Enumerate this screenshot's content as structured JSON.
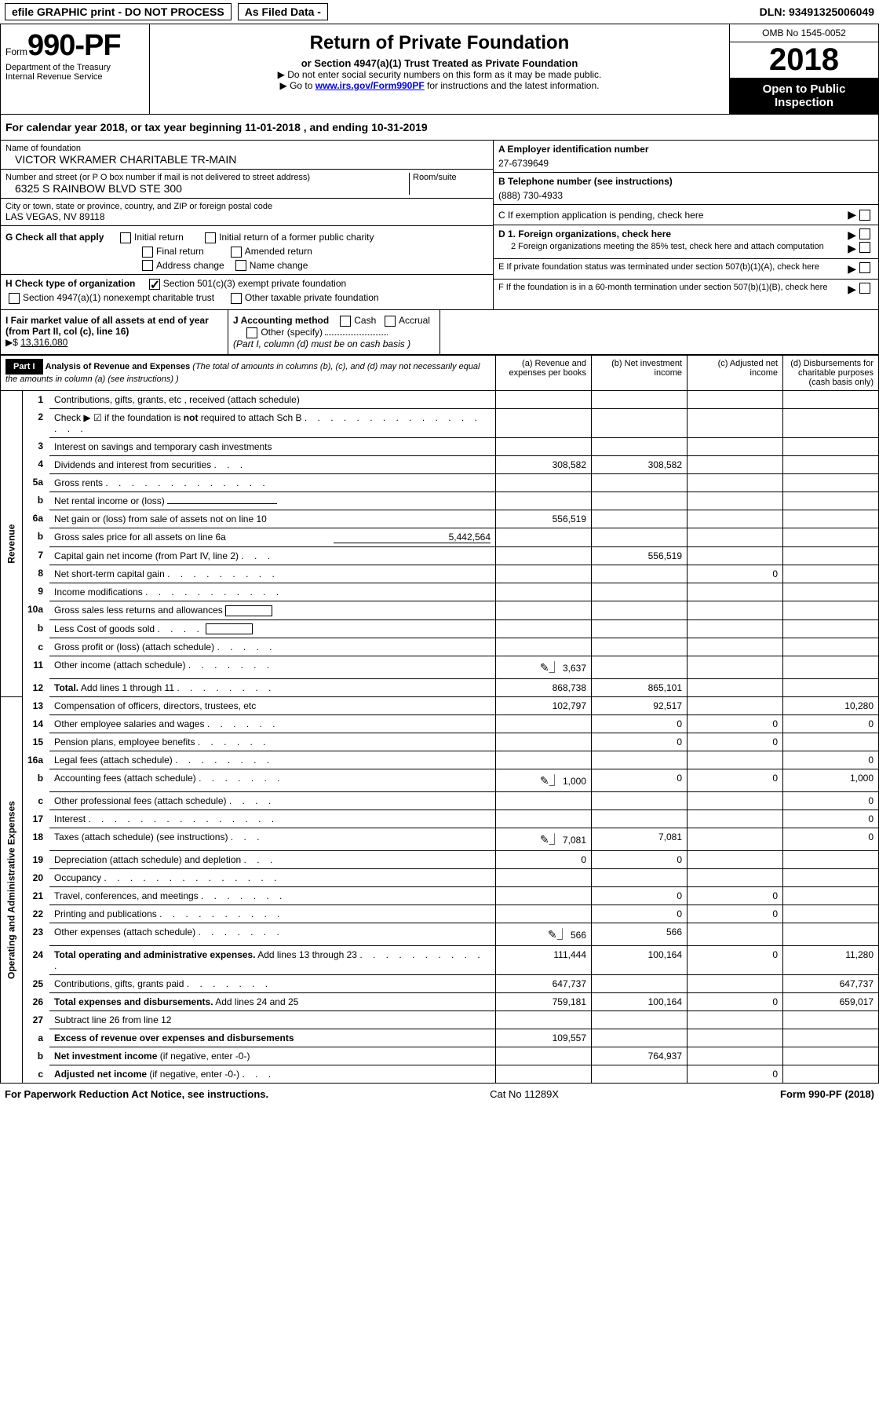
{
  "top": {
    "efile": "efile GRAPHIC print - DO NOT PROCESS",
    "asfiled": "As Filed Data -",
    "dln": "DLN: 93491325006049"
  },
  "header": {
    "form_label": "Form",
    "form_no": "990-PF",
    "dept1": "Department of the Treasury",
    "dept2": "Internal Revenue Service",
    "title": "Return of Private Foundation",
    "subtitle": "or Section 4947(a)(1) Trust Treated as Private Foundation",
    "instr1": "▶ Do not enter social security numbers on this form as it may be made public.",
    "instr2_a": "▶ Go to ",
    "instr2_link": "www.irs.gov/Form990PF",
    "instr2_b": " for instructions and the latest information.",
    "omb": "OMB No 1545-0052",
    "year": "2018",
    "open": "Open to Public Inspection"
  },
  "calyear": "For calendar year 2018, or tax year beginning 11-01-2018               , and ending 10-31-2019",
  "info_left": {
    "name_label": "Name of foundation",
    "name": "VICTOR WKRAMER CHARITABLE TR-MAIN",
    "street_label": "Number and street (or P O  box number if mail is not delivered to street address)",
    "room_label": "Room/suite",
    "street": "6325 S RAINBOW BLVD STE 300",
    "city_label": "City or town, state or province, country, and ZIP or foreign postal code",
    "city": "LAS VEGAS, NV  89118"
  },
  "info_right": {
    "a_label": "A Employer identification number",
    "a_val": "27-6739649",
    "b_label": "B Telephone number (see instructions)",
    "b_val": "(888) 730-4933",
    "c_label": "C If exemption application is pending, check here",
    "d1": "D 1. Foreign organizations, check here",
    "d2": "2  Foreign organizations meeting the 85% test, check here and attach computation",
    "e": "E  If private foundation status was terminated under section 507(b)(1)(A), check here",
    "f": "F  If the foundation is in a 60-month termination under section 507(b)(1)(B), check here"
  },
  "g": {
    "label": "G Check all that apply",
    "opts": [
      "Initial return",
      "Initial return of a former public charity",
      "Final return",
      "Amended return",
      "Address change",
      "Name change"
    ]
  },
  "h": {
    "label": "H Check type of organization",
    "opt1": "Section 501(c)(3) exempt private foundation",
    "opt2": "Section 4947(a)(1) nonexempt charitable trust",
    "opt3": "Other taxable private foundation"
  },
  "i": {
    "label": "I Fair market value of all assets at end of year (from Part II, col  (c), line 16)",
    "arrow": "▶$",
    "val": "13,316,080"
  },
  "j": {
    "label": "J Accounting method",
    "cash": "Cash",
    "accrual": "Accrual",
    "other": "Other (specify)",
    "note": "(Part I, column (d) must be on cash basis )"
  },
  "part1": {
    "tag": "Part I",
    "title": "Analysis of Revenue and Expenses",
    "title_note": "(The total of amounts in columns (b), (c), and (d) may not necessarily equal the amounts in column (a) (see instructions) )",
    "col_a": "(a)   Revenue and expenses per books",
    "col_b": "(b)   Net investment income",
    "col_c": "(c)  Adjusted net income",
    "col_d": "(d)  Disbursements for charitable purposes (cash basis only)"
  },
  "revenue_label": "Revenue",
  "expense_label": "Operating and Administrative Expenses",
  "rows": [
    {
      "n": "1",
      "d": "Contributions, gifts, grants, etc , received (attach schedule)"
    },
    {
      "n": "2",
      "d": "Check ▶ ☑ if the foundation is <b>not</b> required to attach Sch  B",
      "dots": ". . . . . . . . . . . . . . . . ."
    },
    {
      "n": "3",
      "d": "Interest on savings and temporary cash investments"
    },
    {
      "n": "4",
      "d": "Dividends and interest from securities",
      "dots": ".  .  .",
      "a": "308,582",
      "b": "308,582"
    },
    {
      "n": "5a",
      "d": "Gross rents",
      "dots": ". . . . . . . . . . . . ."
    },
    {
      "n": "b",
      "d": "Net rental income or (loss)",
      "ul": true
    },
    {
      "n": "6a",
      "d": "Net gain or (loss) from sale of assets not on line 10",
      "a": "556,519"
    },
    {
      "n": "b",
      "d": "Gross sales price for all assets on line 6a",
      "extra": "5,442,564"
    },
    {
      "n": "7",
      "d": "Capital gain net income (from Part IV, line 2)",
      "dots": ".  .  .",
      "b": "556,519"
    },
    {
      "n": "8",
      "d": "Net short-term capital gain",
      "dots": ". . . . . . . . .",
      "c": "0"
    },
    {
      "n": "9",
      "d": "Income modifications",
      "dots": ". . . . . . . . . . ."
    },
    {
      "n": "10a",
      "d": "Gross sales less returns and allowances",
      "box": true
    },
    {
      "n": "b",
      "d": "Less  Cost of goods sold",
      "dots": ".  .  .  .",
      "box": true
    },
    {
      "n": "c",
      "d": "Gross profit or (loss) (attach schedule)",
      "dots": ".  .  .  .  ."
    },
    {
      "n": "11",
      "d": "Other income (attach schedule)",
      "dots": ". . . . . . .",
      "icon": true,
      "a": "3,637"
    },
    {
      "n": "12",
      "d": "<b>Total.</b> Add lines 1 through 11",
      "dots": ". . . . . . . .",
      "a": "868,738",
      "b": "865,101"
    }
  ],
  "exp_rows": [
    {
      "n": "13",
      "d": "Compensation of officers, directors, trustees, etc",
      "a": "102,797",
      "b": "92,517",
      "d4": "10,280"
    },
    {
      "n": "14",
      "d": "Other employee salaries and wages",
      "dots": ". . . . . .",
      "b": "0",
      "c": "0",
      "d4": "0"
    },
    {
      "n": "15",
      "d": "Pension plans, employee benefits",
      "dots": ". . . . . .",
      "b": "0",
      "c": "0"
    },
    {
      "n": "16a",
      "d": "Legal fees (attach schedule)",
      "dots": ". . . . . . . .",
      "d4": "0"
    },
    {
      "n": "b",
      "d": "Accounting fees (attach schedule)",
      "dots": ". . . . . . .",
      "icon": true,
      "a": "1,000",
      "b": "0",
      "c": "0",
      "d4": "1,000"
    },
    {
      "n": "c",
      "d": "Other professional fees (attach schedule)",
      "dots": ".  .  .  .",
      "d4": "0"
    },
    {
      "n": "17",
      "d": "Interest",
      "dots": ". . . . . . . . . . . . . . .",
      "d4": "0"
    },
    {
      "n": "18",
      "d": "Taxes (attach schedule) (see instructions)",
      "dots": ".  .  .",
      "icon": true,
      "a": "7,081",
      "b": "7,081",
      "d4": "0"
    },
    {
      "n": "19",
      "d": "Depreciation (attach schedule) and depletion",
      "dots": ".  .  .",
      "a": "0",
      "b": "0"
    },
    {
      "n": "20",
      "d": "Occupancy",
      "dots": ". . . . . . . . . . . . . ."
    },
    {
      "n": "21",
      "d": "Travel, conferences, and meetings",
      "dots": ". . . . . . .",
      "b": "0",
      "c": "0"
    },
    {
      "n": "22",
      "d": "Printing and publications",
      "dots": ". . . . . . . . . .",
      "b": "0",
      "c": "0"
    },
    {
      "n": "23",
      "d": "Other expenses (attach schedule)",
      "dots": ". . . . . . .",
      "icon": true,
      "a": "566",
      "b": "566"
    },
    {
      "n": "24",
      "d": "<b>Total operating and administrative expenses.</b> Add lines 13 through 23",
      "dots": ". . . . . . . . . . .",
      "a": "111,444",
      "b": "100,164",
      "c": "0",
      "d4": "11,280"
    },
    {
      "n": "25",
      "d": "Contributions, gifts, grants paid",
      "dots": ". . . . . . .",
      "a": "647,737",
      "d4": "647,737"
    },
    {
      "n": "26",
      "d": "<b>Total expenses and disbursements.</b> Add lines 24 and 25",
      "a": "759,181",
      "b": "100,164",
      "c": "0",
      "d4": "659,017"
    },
    {
      "n": "27",
      "d": "Subtract line 26 from line 12"
    },
    {
      "n": "a",
      "d": "<b>Excess of revenue over expenses and disbursements</b>",
      "a": "109,557"
    },
    {
      "n": "b",
      "d": "<b>Net investment income</b> (if negative, enter -0-)",
      "b": "764,937"
    },
    {
      "n": "c",
      "d": "<b>Adjusted net income</b> (if negative, enter -0-)",
      "dots": ".  .  .",
      "c": "0"
    }
  ],
  "footer": {
    "left": "For Paperwork Reduction Act Notice, see instructions.",
    "mid": "Cat  No  11289X",
    "right": "Form 990-PF (2018)"
  }
}
